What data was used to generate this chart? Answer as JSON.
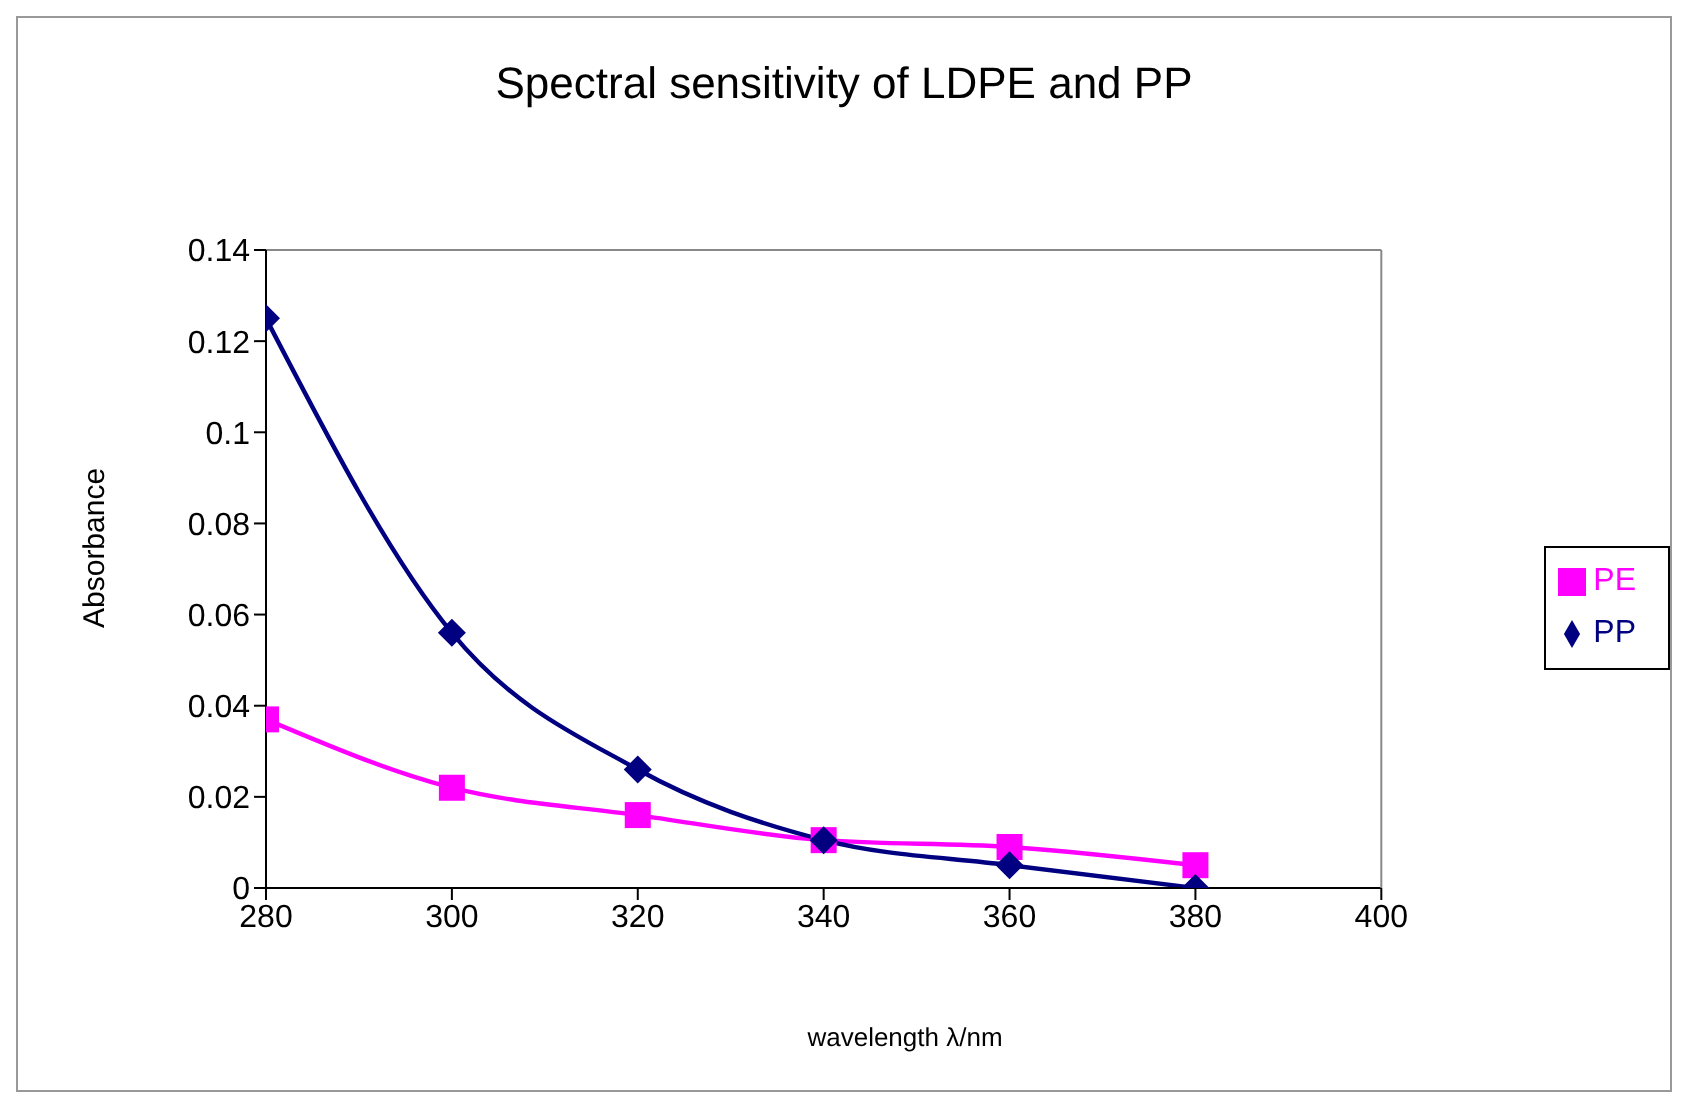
{
  "chart_data": {
    "type": "line",
    "title": "Spectral sensitivity of LDPE and PP",
    "xlabel": "wavelength λ/nm",
    "ylabel": "Absorbance",
    "x": [
      280,
      300,
      320,
      340,
      360,
      380
    ],
    "series": [
      {
        "name": "PP",
        "color": "#000080",
        "values": [
          0.125,
          0.056,
          0.026,
          0.0105,
          0.005,
          0
        ],
        "marker": "diamond"
      },
      {
        "name": "PE",
        "color": "#ff00ff",
        "values": [
          0.037,
          0.022,
          0.016,
          0.0105,
          0.009,
          0.005
        ],
        "marker": "square"
      }
    ],
    "xlim": [
      280,
      400
    ],
    "xticks": [
      280,
      300,
      320,
      340,
      360,
      380,
      400
    ],
    "ylim": [
      0,
      0.14
    ],
    "yticks": [
      0,
      0.02,
      0.04,
      0.06,
      0.08,
      0.1,
      0.12,
      0.14
    ],
    "grid": false,
    "legend": "right",
    "line_style": "solid"
  }
}
